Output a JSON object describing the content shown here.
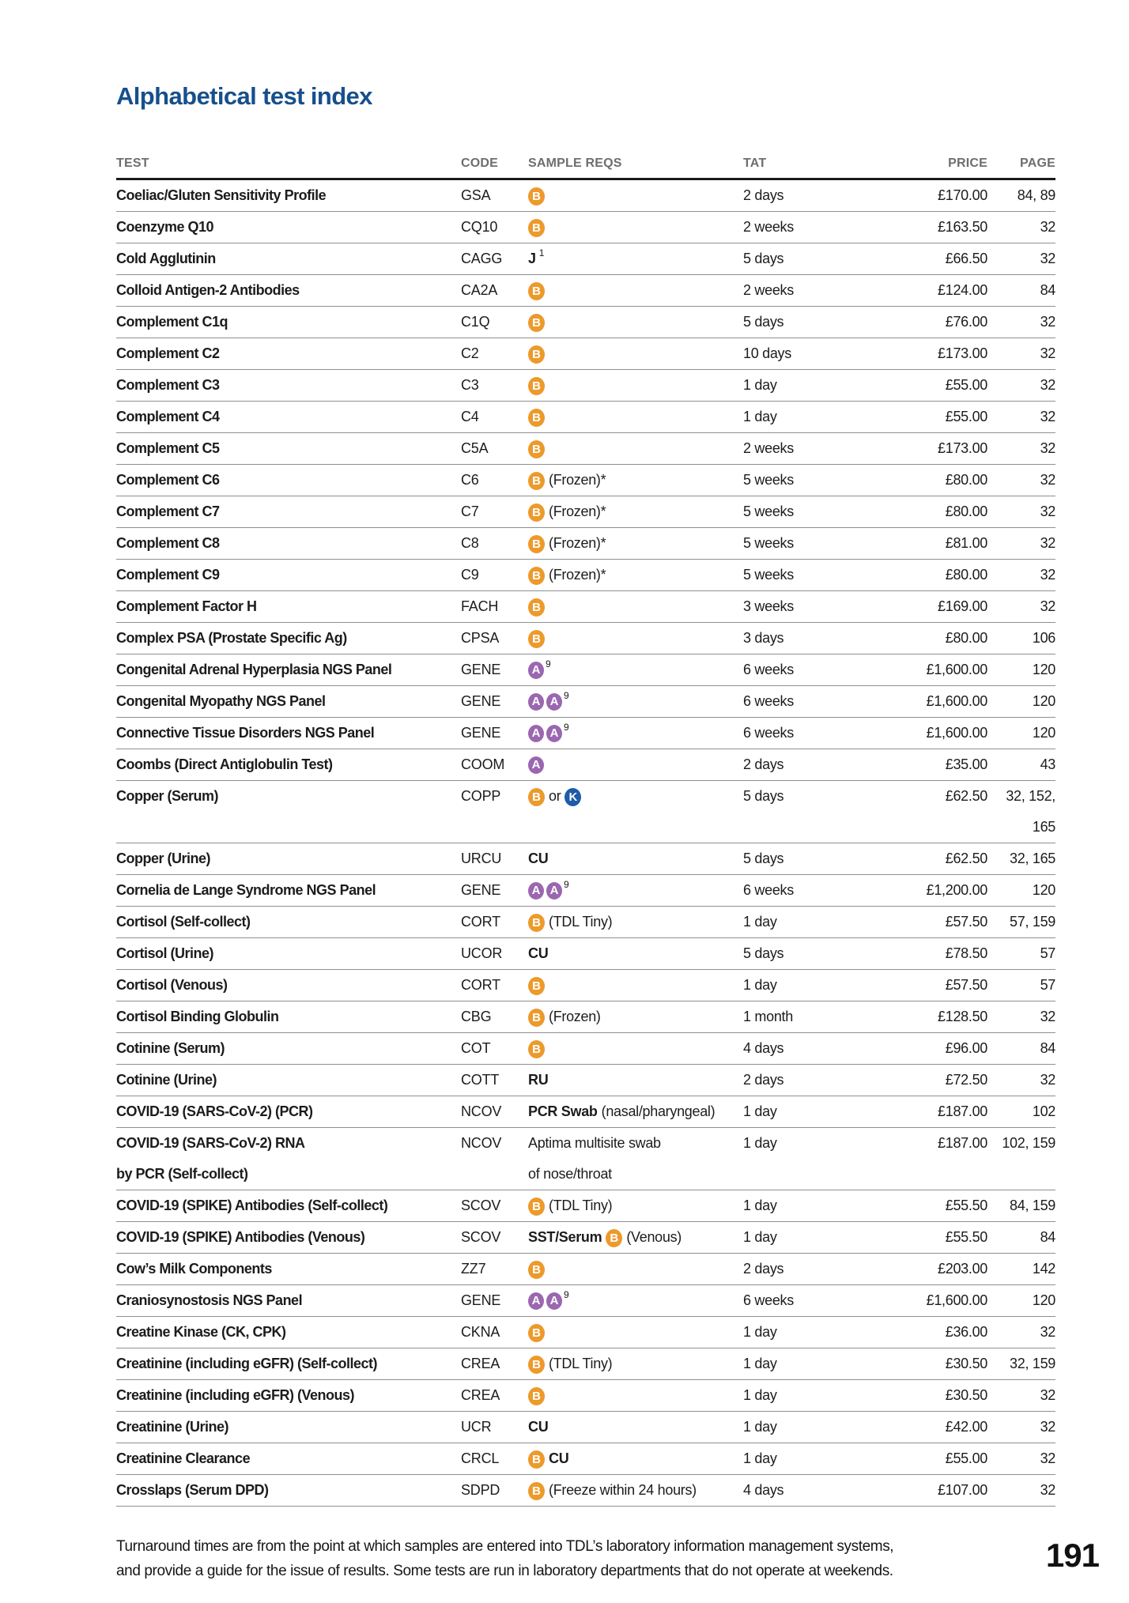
{
  "page": {
    "title": "Alphabetical test index",
    "page_number": "191",
    "footer": {
      "line1": "Turnaround times are from the point at which samples are entered into TDL’s laboratory information management systems,",
      "line2": "and provide a guide for the issue of results. Some tests are run in laboratory departments that do not operate at weekends."
    }
  },
  "colors": {
    "title_blue": "#174F8C",
    "tube_orange": "#EC9A2B",
    "tube_purple": "#9B67B0",
    "tube_blue": "#1E5BA8"
  },
  "table": {
    "headers": [
      "TEST",
      "CODE",
      "SAMPLE REQS",
      "TAT",
      "PRICE",
      "PAGE"
    ],
    "rows": [
      {
        "test": [
          "Coeliac/Gluten Sensitivity Profile"
        ],
        "code": "GSA",
        "sample": [
          {
            "t": "b"
          }
        ],
        "tat": "2 days",
        "price": "£170.00",
        "page": [
          "84, 89"
        ]
      },
      {
        "test": [
          "Coenzyme Q10"
        ],
        "code": "CQ10",
        "sample": [
          {
            "t": "b"
          }
        ],
        "tat": "2 weeks",
        "price": "£163.50",
        "page": [
          "32"
        ]
      },
      {
        "test": [
          "Cold Agglutinin"
        ],
        "code": "CAGG",
        "sample": [
          {
            "t": "bold",
            "v": "J"
          },
          {
            "t": "sup",
            "v": "1"
          }
        ],
        "tat": "5 days",
        "price": "£66.50",
        "page": [
          "32"
        ]
      },
      {
        "test": [
          "Colloid Antigen-2 Antibodies"
        ],
        "code": "CA2A",
        "sample": [
          {
            "t": "b"
          }
        ],
        "tat": "2 weeks",
        "price": "£124.00",
        "page": [
          "84"
        ]
      },
      {
        "test": [
          "Complement C1q"
        ],
        "code": "C1Q",
        "sample": [
          {
            "t": "b"
          }
        ],
        "tat": "5 days",
        "price": "£76.00",
        "page": [
          "32"
        ]
      },
      {
        "test": [
          "Complement C2"
        ],
        "code": "C2",
        "sample": [
          {
            "t": "b"
          }
        ],
        "tat": "10 days",
        "price": "£173.00",
        "page": [
          "32"
        ]
      },
      {
        "test": [
          "Complement C3"
        ],
        "code": "C3",
        "sample": [
          {
            "t": "b"
          }
        ],
        "tat": "1 day",
        "price": "£55.00",
        "page": [
          "32"
        ]
      },
      {
        "test": [
          "Complement C4"
        ],
        "code": "C4",
        "sample": [
          {
            "t": "b"
          }
        ],
        "tat": "1 day",
        "price": "£55.00",
        "page": [
          "32"
        ]
      },
      {
        "test": [
          "Complement C5"
        ],
        "code": "C5A",
        "sample": [
          {
            "t": "b"
          }
        ],
        "tat": "2 weeks",
        "price": "£173.00",
        "page": [
          "32"
        ]
      },
      {
        "test": [
          "Complement C6"
        ],
        "code": "C6",
        "sample": [
          {
            "t": "b"
          },
          {
            "t": "txt",
            "v": "(Frozen)*"
          }
        ],
        "tat": "5 weeks",
        "price": "£80.00",
        "page": [
          "32"
        ]
      },
      {
        "test": [
          "Complement C7"
        ],
        "code": "C7",
        "sample": [
          {
            "t": "b"
          },
          {
            "t": "txt",
            "v": "(Frozen)*"
          }
        ],
        "tat": "5 weeks",
        "price": "£80.00",
        "page": [
          "32"
        ]
      },
      {
        "test": [
          "Complement C8"
        ],
        "code": "C8",
        "sample": [
          {
            "t": "b"
          },
          {
            "t": "txt",
            "v": "(Frozen)*"
          }
        ],
        "tat": "5 weeks",
        "price": "£81.00",
        "page": [
          "32"
        ]
      },
      {
        "test": [
          "Complement C9"
        ],
        "code": "C9",
        "sample": [
          {
            "t": "b"
          },
          {
            "t": "txt",
            "v": "(Frozen)*"
          }
        ],
        "tat": "5 weeks",
        "price": "£80.00",
        "page": [
          "32"
        ]
      },
      {
        "test": [
          "Complement Factor H"
        ],
        "code": "FACH",
        "sample": [
          {
            "t": "b"
          }
        ],
        "tat": "3 weeks",
        "price": "£169.00",
        "page": [
          "32"
        ]
      },
      {
        "test": [
          "Complex PSA (Prostate Specific Ag)"
        ],
        "code": "CPSA",
        "sample": [
          {
            "t": "b"
          }
        ],
        "tat": "3 days",
        "price": "£80.00",
        "page": [
          "106"
        ]
      },
      {
        "test": [
          "Congenital Adrenal Hyperplasia NGS Panel"
        ],
        "code": "GENE",
        "sample": [
          {
            "t": "a"
          },
          {
            "t": "sup",
            "v": "9"
          }
        ],
        "tat": "6 weeks",
        "price": "£1,600.00",
        "page": [
          "120"
        ]
      },
      {
        "test": [
          "Congenital Myopathy NGS Panel"
        ],
        "code": "GENE",
        "sample": [
          {
            "t": "a"
          },
          {
            "t": "a"
          },
          {
            "t": "sup",
            "v": "9"
          }
        ],
        "tat": "6 weeks",
        "price": "£1,600.00",
        "page": [
          "120"
        ]
      },
      {
        "test": [
          "Connective Tissue Disorders NGS Panel"
        ],
        "code": "GENE",
        "sample": [
          {
            "t": "a"
          },
          {
            "t": "a"
          },
          {
            "t": "sup",
            "v": "9"
          }
        ],
        "tat": "6 weeks",
        "price": "£1,600.00",
        "page": [
          "120"
        ]
      },
      {
        "test": [
          "Coombs (Direct Antiglobulin Test)"
        ],
        "code": "COOM",
        "sample": [
          {
            "t": "a"
          }
        ],
        "tat": "2 days",
        "price": "£35.00",
        "page": [
          "43"
        ]
      },
      {
        "test": [
          "Copper (Serum)"
        ],
        "code": "COPP",
        "tall": true,
        "sample": [
          {
            "t": "b"
          },
          {
            "t": "txt",
            "v": "or"
          },
          {
            "t": "k"
          }
        ],
        "tat": "5 days",
        "price": "£62.50",
        "page": [
          "32, 152,",
          "165"
        ]
      },
      {
        "test": [
          "Copper (Urine)"
        ],
        "code": "URCU",
        "sample": [
          {
            "t": "bold",
            "v": "CU"
          }
        ],
        "tat": "5 days",
        "price": "£62.50",
        "page": [
          "32, 165"
        ]
      },
      {
        "test": [
          "Cornelia de Lange Syndrome NGS Panel"
        ],
        "code": "GENE",
        "sample": [
          {
            "t": "a"
          },
          {
            "t": "a"
          },
          {
            "t": "sup",
            "v": "9"
          }
        ],
        "tat": "6 weeks",
        "price": "£1,200.00",
        "page": [
          "120"
        ]
      },
      {
        "test": [
          "Cortisol (Self-collect)"
        ],
        "code": "CORT",
        "sample": [
          {
            "t": "b"
          },
          {
            "t": "txt",
            "v": "(TDL Tiny)"
          }
        ],
        "tat": "1 day",
        "price": "£57.50",
        "page": [
          "57, 159"
        ]
      },
      {
        "test": [
          "Cortisol (Urine)"
        ],
        "code": "UCOR",
        "sample": [
          {
            "t": "bold",
            "v": "CU"
          }
        ],
        "tat": "5 days",
        "price": "£78.50",
        "page": [
          "57"
        ]
      },
      {
        "test": [
          "Cortisol (Venous)"
        ],
        "code": "CORT",
        "sample": [
          {
            "t": "b"
          }
        ],
        "tat": "1 day",
        "price": "£57.50",
        "page": [
          "57"
        ]
      },
      {
        "test": [
          "Cortisol Binding Globulin"
        ],
        "code": "CBG",
        "sample": [
          {
            "t": "b"
          },
          {
            "t": "txt",
            "v": "(Frozen)"
          }
        ],
        "tat": "1 month",
        "price": "£128.50",
        "page": [
          "32"
        ]
      },
      {
        "test": [
          "Cotinine (Serum)"
        ],
        "code": "COT",
        "sample": [
          {
            "t": "b"
          }
        ],
        "tat": "4 days",
        "price": "£96.00",
        "page": [
          "84"
        ]
      },
      {
        "test": [
          "Cotinine (Urine)"
        ],
        "code": "COTT",
        "sample": [
          {
            "t": "bold",
            "v": "RU"
          }
        ],
        "tat": "2 days",
        "price": "£72.50",
        "page": [
          "32"
        ]
      },
      {
        "test": [
          "COVID-19 (SARS-CoV-2) (PCR)"
        ],
        "code": "NCOV",
        "sample": [
          {
            "t": "bold",
            "v": "PCR Swab"
          },
          {
            "t": "txt",
            "v": "(nasal/pharyngeal)"
          }
        ],
        "tat": "1 day",
        "price": "£187.00",
        "page": [
          "102"
        ]
      },
      {
        "test": [
          "COVID-19 (SARS-CoV-2) RNA",
          "by PCR (Self-collect)"
        ],
        "code": "NCOV",
        "tall": true,
        "sample": [
          {
            "t": "txt",
            "v": "Aptima multisite swab"
          },
          {
            "t": "br"
          },
          {
            "t": "txt",
            "v": "of nose/throat"
          }
        ],
        "tat": "1 day",
        "price": "£187.00",
        "page": [
          "102, 159"
        ]
      },
      {
        "test": [
          "COVID-19 (SPIKE) Antibodies (Self-collect)"
        ],
        "code": "SCOV",
        "sample": [
          {
            "t": "b"
          },
          {
            "t": "txt",
            "v": "(TDL Tiny)"
          }
        ],
        "tat": "1 day",
        "price": "£55.50",
        "page": [
          "84, 159"
        ]
      },
      {
        "test": [
          "COVID-19 (SPIKE) Antibodies (Venous)"
        ],
        "code": "SCOV",
        "sample": [
          {
            "t": "bold",
            "v": "SST/Serum"
          },
          {
            "t": "b"
          },
          {
            "t": "txt",
            "v": "(Venous)"
          }
        ],
        "tat": "1 day",
        "price": "£55.50",
        "page": [
          "84"
        ]
      },
      {
        "test": [
          "Cow’s Milk Components"
        ],
        "code": "ZZ7",
        "sample": [
          {
            "t": "b"
          }
        ],
        "tat": "2 days",
        "price": "£203.00",
        "page": [
          "142"
        ]
      },
      {
        "test": [
          "Craniosynostosis NGS Panel"
        ],
        "code": "GENE",
        "sample": [
          {
            "t": "a"
          },
          {
            "t": "a"
          },
          {
            "t": "sup",
            "v": "9"
          }
        ],
        "tat": "6 weeks",
        "price": "£1,600.00",
        "page": [
          "120"
        ]
      },
      {
        "test": [
          "Creatine Kinase (CK, CPK)"
        ],
        "code": "CKNA",
        "sample": [
          {
            "t": "b"
          }
        ],
        "tat": "1 day",
        "price": "£36.00",
        "page": [
          "32"
        ]
      },
      {
        "test": [
          "Creatinine (including eGFR) (Self-collect)"
        ],
        "code": "CREA",
        "sample": [
          {
            "t": "b"
          },
          {
            "t": "txt",
            "v": "(TDL Tiny)"
          }
        ],
        "tat": "1 day",
        "price": "£30.50",
        "page": [
          "32, 159"
        ]
      },
      {
        "test": [
          "Creatinine (including eGFR) (Venous)"
        ],
        "code": "CREA",
        "sample": [
          {
            "t": "b"
          }
        ],
        "tat": "1 day",
        "price": "£30.50",
        "page": [
          "32"
        ]
      },
      {
        "test": [
          "Creatinine (Urine)"
        ],
        "code": "UCR",
        "sample": [
          {
            "t": "bold",
            "v": "CU"
          }
        ],
        "tat": "1 day",
        "price": "£42.00",
        "page": [
          "32"
        ]
      },
      {
        "test": [
          "Creatinine Clearance"
        ],
        "code": "CRCL",
        "sample": [
          {
            "t": "b"
          },
          {
            "t": "bold",
            "v": "CU"
          }
        ],
        "tat": "1 day",
        "price": "£55.00",
        "page": [
          "32"
        ]
      },
      {
        "test": [
          "Crosslaps (Serum DPD)"
        ],
        "code": "SDPD",
        "sample": [
          {
            "t": "b"
          },
          {
            "t": "txt",
            "v": "(Freeze within 24 hours)"
          }
        ],
        "tat": "4 days",
        "price": "£107.00",
        "page": [
          "32"
        ]
      }
    ]
  }
}
